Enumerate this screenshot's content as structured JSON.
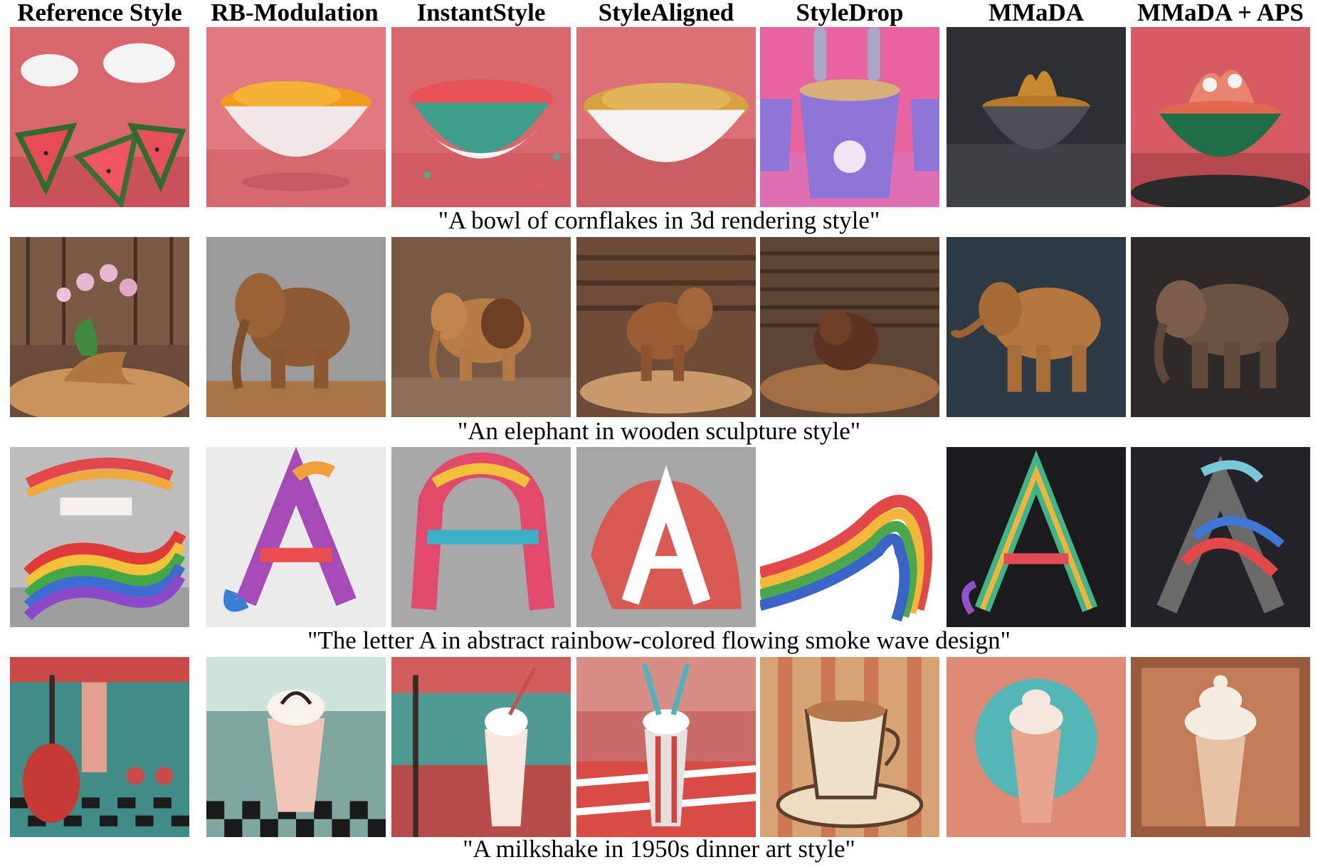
{
  "columns": [
    "Reference Style",
    "RB-Modulation",
    "InstantStyle",
    "StyleAligned",
    "StyleDrop",
    "MMaDA",
    "MMaDA + APS"
  ],
  "rows": [
    {
      "caption": "\"A bowl of cornflakes in 3d rendering style\""
    },
    {
      "caption": "\"An elephant in wooden sculpture style\""
    },
    {
      "caption": "\"The letter A in abstract rainbow-colored flowing smoke wave design\""
    },
    {
      "caption": "\"A milkshake in 1950s dinner art style\""
    }
  ],
  "colors": {
    "cornflakes_bg": "#d9636a",
    "wood_brown": "#8a5a36",
    "rainbow_bg": "#bdbdbd",
    "diner_teal": "#3f8d86",
    "diner_red": "#c94a49"
  }
}
